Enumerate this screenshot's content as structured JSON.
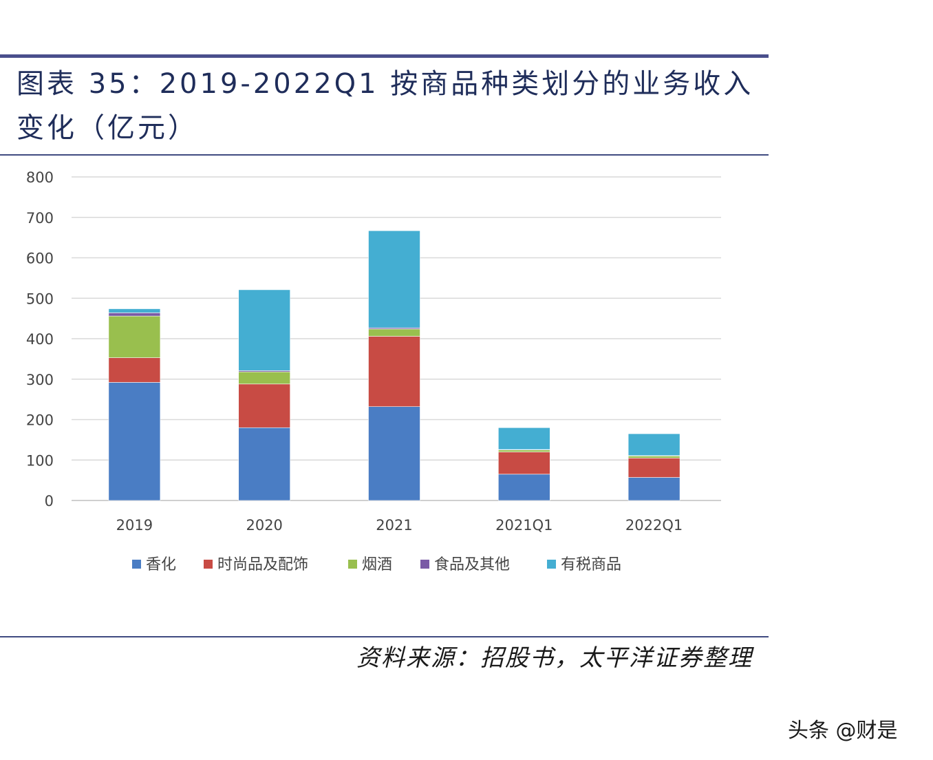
{
  "title_line1": "图表 35：2019-2022Q1 按商品种类划分的业务收入",
  "title_line2": "变化（亿元）",
  "source": "资料来源：招股书，太平洋证券整理",
  "watermark": "头条 @财是",
  "chart_data": {
    "type": "bar",
    "stacked": true,
    "categories": [
      "2019",
      "2020",
      "2021",
      "2021Q1",
      "2022Q1"
    ],
    "ylim": [
      0,
      800
    ],
    "yticks": [
      0,
      100,
      200,
      300,
      400,
      500,
      600,
      700,
      800
    ],
    "grid": true,
    "legend_position": "bottom",
    "series": [
      {
        "name": "香化",
        "color": "#4a7dc4",
        "values": [
          292,
          180,
          232,
          65,
          57
        ]
      },
      {
        "name": "时尚品及配饰",
        "color": "#c84b44",
        "values": [
          61,
          108,
          174,
          55,
          48
        ]
      },
      {
        "name": "烟酒",
        "color": "#99bf4e",
        "values": [
          103,
          30,
          18,
          5,
          5
        ]
      },
      {
        "name": "食品及其他",
        "color": "#7a5aa6",
        "values": [
          8,
          3,
          3,
          1,
          1
        ]
      },
      {
        "name": "有税商品",
        "color": "#44aed2",
        "values": [
          10,
          200,
          240,
          54,
          54
        ]
      }
    ]
  }
}
